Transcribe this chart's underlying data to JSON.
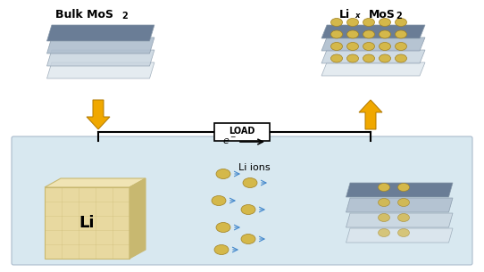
{
  "title_left": "Bulk MoS",
  "title_left_sub": "2",
  "title_right": "Li",
  "title_right_sub": "x",
  "title_right_main": "MoS",
  "title_right_sub2": "2",
  "label_li": "Li",
  "label_li_ions": "Li ions",
  "label_load": "LOAD",
  "label_electron": "e",
  "bg_color": "#ffffff",
  "electrolyte_color": "#d8e8f0",
  "layer_color_dark": "#6a7d96",
  "layer_color_light": "#b0bfcf",
  "layer_color_lighter": "#c8d4df",
  "li_block_color": "#e8d9a0",
  "li_block_edge": "#c8b870",
  "gold_sphere_color": "#d4b84a",
  "gold_sphere_edge": "#a08020",
  "arrow_color": "#f0a800",
  "wire_color": "#000000",
  "load_box_color": "#ffffff",
  "electron_arrow_color": "#000000",
  "li_ion_arrow_color": "#4488cc"
}
